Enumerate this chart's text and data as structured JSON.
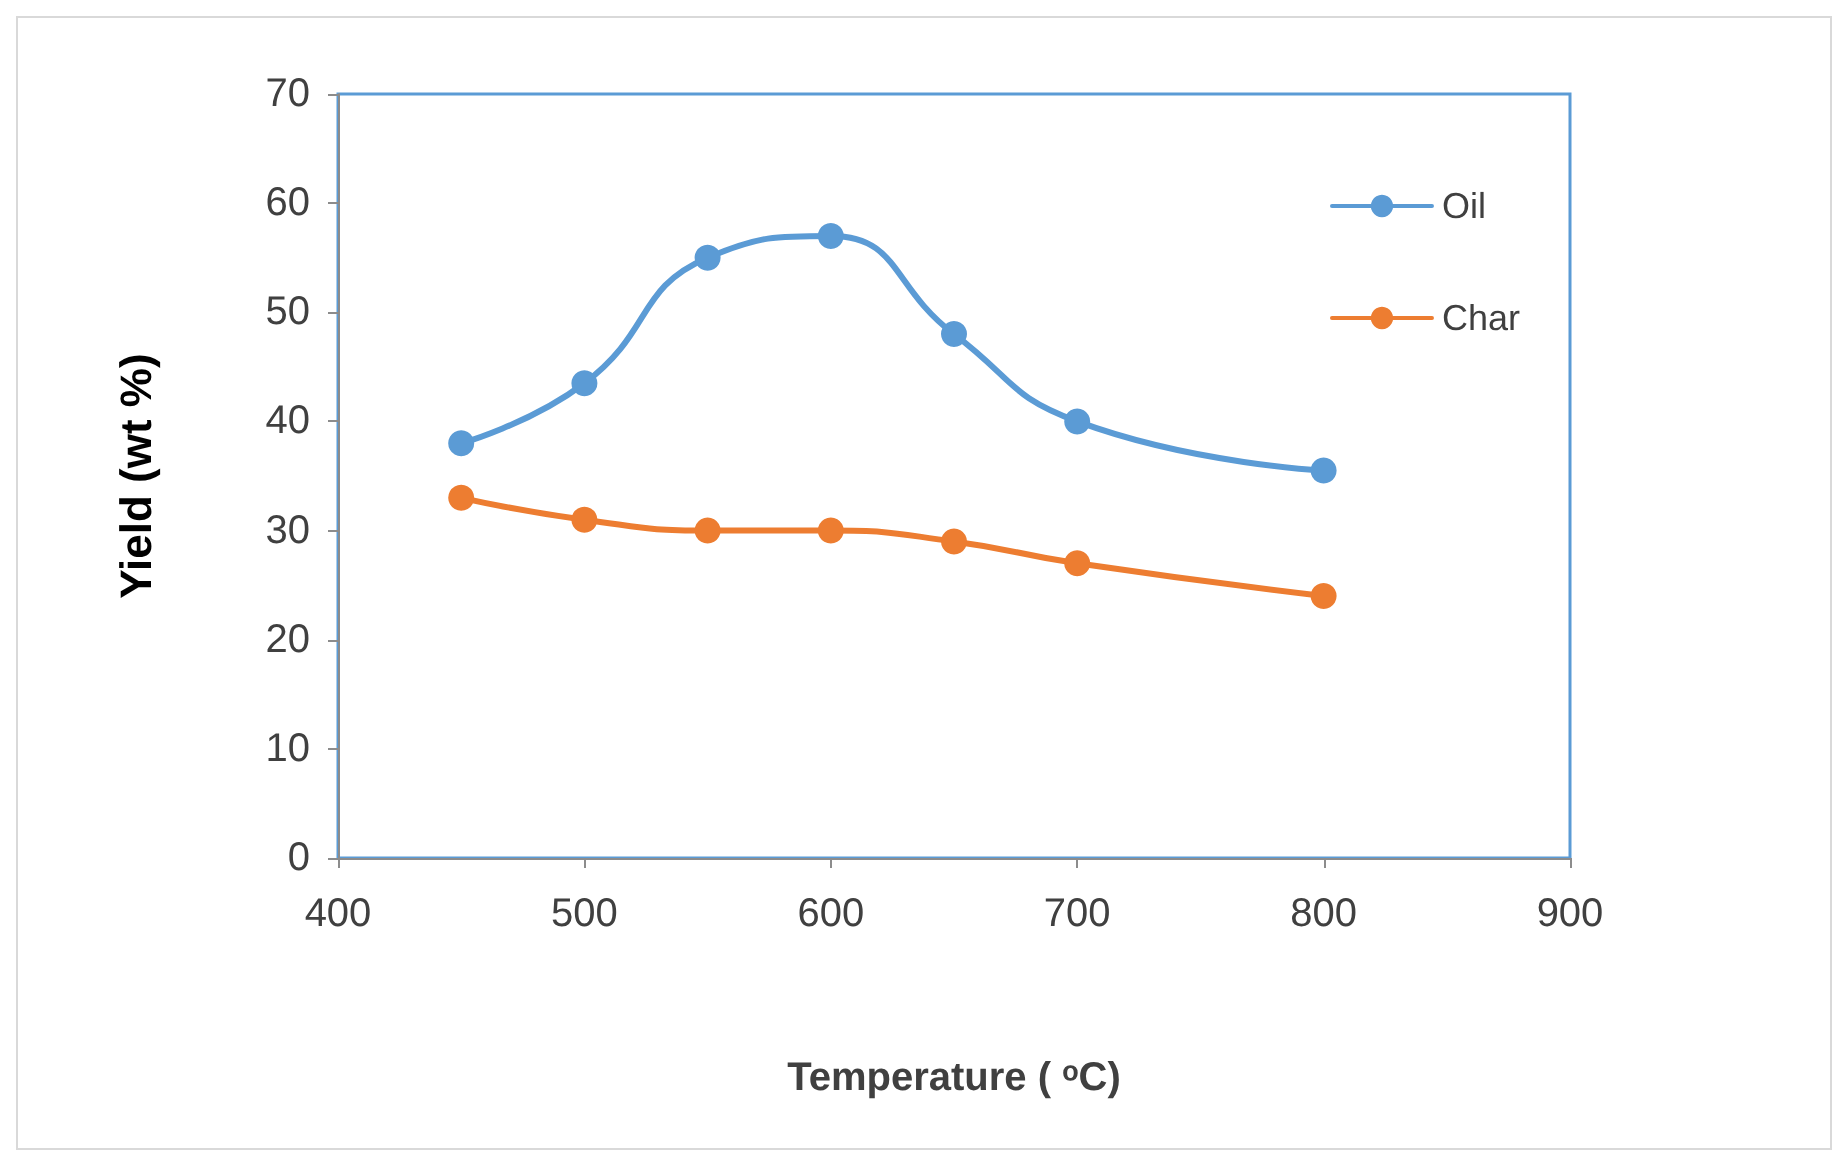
{
  "chart_data": {
    "type": "line",
    "xlabel": "Temperature ( ᵒC)",
    "ylabel": "Yield (wt %)",
    "x": [
      450,
      500,
      550,
      600,
      650,
      700,
      800
    ],
    "series": [
      {
        "name": "Oil",
        "color": "#5b9bd5",
        "values": [
          38,
          43.5,
          55,
          57,
          48,
          40,
          35.5
        ]
      },
      {
        "name": "Char",
        "color": "#ed7d31",
        "values": [
          33,
          31,
          30,
          30,
          29,
          27,
          24
        ]
      }
    ],
    "xlim": [
      400,
      900
    ],
    "xticks": [
      400,
      500,
      600,
      700,
      800,
      900
    ],
    "ylim": [
      0,
      70
    ],
    "yticks": [
      0,
      10,
      20,
      30,
      40,
      50,
      60,
      70
    ],
    "grid": false,
    "legend": "top right",
    "marker": "circle",
    "line_style": "solid"
  }
}
